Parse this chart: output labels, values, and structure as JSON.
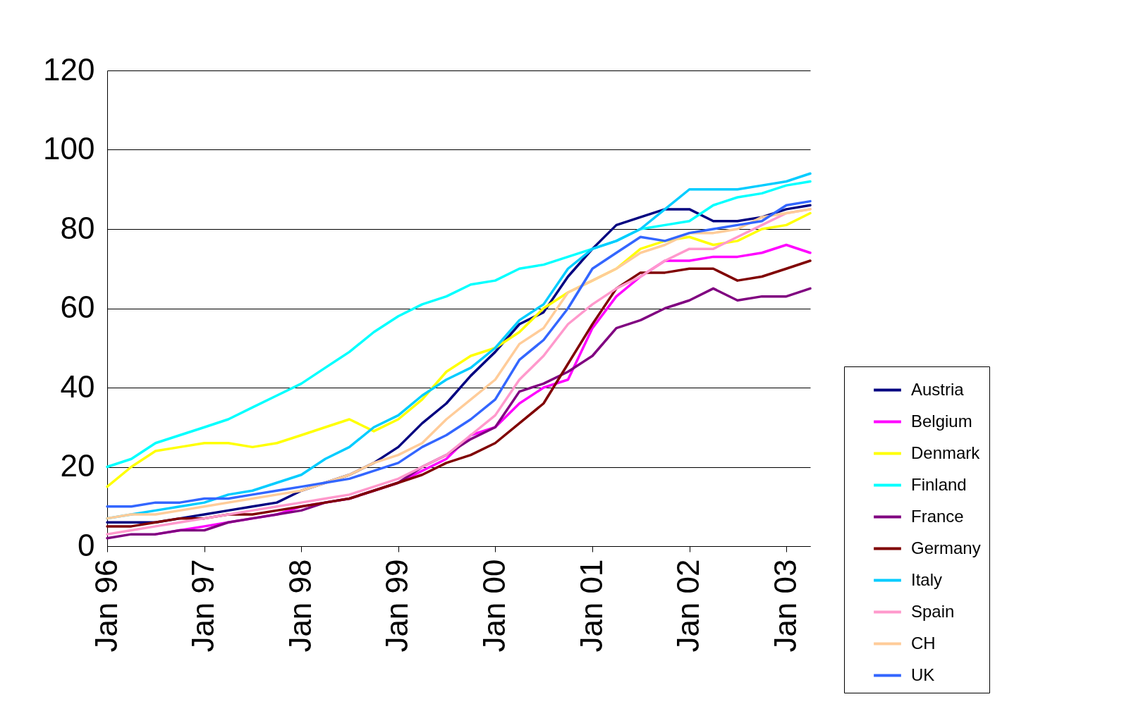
{
  "chart_data": {
    "type": "line",
    "x": [
      "1996-01",
      "1996-04",
      "1996-07",
      "1996-10",
      "1997-01",
      "1997-04",
      "1997-07",
      "1997-10",
      "1998-01",
      "1998-04",
      "1998-07",
      "1998-10",
      "1999-01",
      "1999-04",
      "1999-07",
      "1999-10",
      "2000-01",
      "2000-04",
      "2000-07",
      "2000-10",
      "2001-01",
      "2001-04",
      "2001-07",
      "2001-10",
      "2002-01",
      "2002-04",
      "2002-07",
      "2002-10",
      "2003-01",
      "2003-04"
    ],
    "series": [
      {
        "name": "Austria",
        "color": "#000080",
        "values": [
          6,
          6,
          6,
          7,
          8,
          9,
          10,
          11,
          14,
          16,
          18,
          21,
          25,
          31,
          36,
          43,
          49,
          56,
          59,
          68,
          75,
          81,
          83,
          85,
          85,
          82,
          82,
          83,
          85,
          86
        ]
      },
      {
        "name": "Belgium",
        "color": "#ff00ff",
        "values": [
          null,
          null,
          3,
          4,
          5,
          6,
          7,
          8,
          10,
          11,
          12,
          14,
          16,
          19,
          22,
          28,
          30,
          36,
          40,
          42,
          55,
          63,
          68,
          72,
          72,
          73,
          73,
          74,
          76,
          74
        ]
      },
      {
        "name": "Denmark",
        "color": "#ffff00",
        "values": [
          15,
          20,
          24,
          25,
          26,
          26,
          25,
          26,
          28,
          30,
          32,
          29,
          32,
          37,
          44,
          48,
          50,
          54,
          60,
          64,
          67,
          70,
          75,
          77,
          78,
          76,
          77,
          80,
          81,
          84
        ]
      },
      {
        "name": "Finland",
        "color": "#00ffff",
        "values": [
          20,
          22,
          26,
          28,
          30,
          32,
          35,
          38,
          41,
          45,
          49,
          54,
          58,
          61,
          63,
          66,
          67,
          70,
          71,
          73,
          75,
          77,
          80,
          81,
          82,
          86,
          88,
          89,
          91,
          92
        ]
      },
      {
        "name": "France",
        "color": "#800080",
        "values": [
          2,
          3,
          3,
          4,
          4,
          6,
          7,
          8,
          9,
          11,
          12,
          14,
          16,
          20,
          23,
          27,
          30,
          39,
          41,
          44,
          48,
          55,
          57,
          60,
          62,
          65,
          62,
          63,
          63,
          65
        ]
      },
      {
        "name": "Germany",
        "color": "#800000",
        "values": [
          5,
          5,
          6,
          7,
          7,
          8,
          8,
          9,
          10,
          11,
          12,
          14,
          16,
          18,
          21,
          23,
          26,
          31,
          36,
          46,
          56,
          65,
          69,
          69,
          70,
          70,
          67,
          68,
          70,
          72
        ]
      },
      {
        "name": "Italy",
        "color": "#00ccff",
        "values": [
          7,
          8,
          9,
          10,
          11,
          13,
          14,
          16,
          18,
          22,
          25,
          30,
          33,
          38,
          42,
          45,
          50,
          57,
          61,
          70,
          75,
          77,
          80,
          85,
          90,
          90,
          90,
          91,
          92,
          94
        ]
      },
      {
        "name": "Spain",
        "color": "#ff99cc",
        "values": [
          3,
          4,
          5,
          6,
          7,
          8,
          9,
          10,
          11,
          12,
          13,
          15,
          17,
          20,
          23,
          28,
          33,
          42,
          48,
          56,
          61,
          65,
          68,
          72,
          75,
          75,
          78,
          81,
          84,
          85
        ]
      },
      {
        "name": "CH",
        "color": "#ffcc99",
        "values": [
          7,
          8,
          8,
          9,
          10,
          11,
          12,
          13,
          14,
          16,
          18,
          21,
          23,
          26,
          32,
          37,
          42,
          51,
          55,
          64,
          67,
          70,
          74,
          76,
          79,
          79,
          80,
          83,
          84,
          85
        ]
      },
      {
        "name": "UK",
        "color": "#3366ff",
        "values": [
          10,
          10,
          11,
          11,
          12,
          12,
          13,
          14,
          15,
          16,
          17,
          19,
          21,
          25,
          28,
          32,
          37,
          47,
          52,
          60,
          70,
          74,
          78,
          77,
          79,
          80,
          81,
          82,
          86,
          87
        ]
      }
    ],
    "xlim": [
      "1996-01",
      "2003-04"
    ],
    "xticks": [
      {
        "value": "1996-01",
        "label": "Jan 96"
      },
      {
        "value": "1997-01",
        "label": "Jan 97"
      },
      {
        "value": "1998-01",
        "label": "Jan 98"
      },
      {
        "value": "1999-01",
        "label": "Jan 99"
      },
      {
        "value": "2000-01",
        "label": "Jan 00"
      },
      {
        "value": "2001-01",
        "label": "Jan 01"
      },
      {
        "value": "2002-01",
        "label": "Jan 02"
      },
      {
        "value": "2003-01",
        "label": "Jan 03"
      }
    ],
    "ylim": [
      0,
      120
    ],
    "yticks": [
      0,
      20,
      40,
      60,
      80,
      100,
      120
    ],
    "grid": "y",
    "legend": "bottom right",
    "marker": "none",
    "line_style": "solid"
  }
}
